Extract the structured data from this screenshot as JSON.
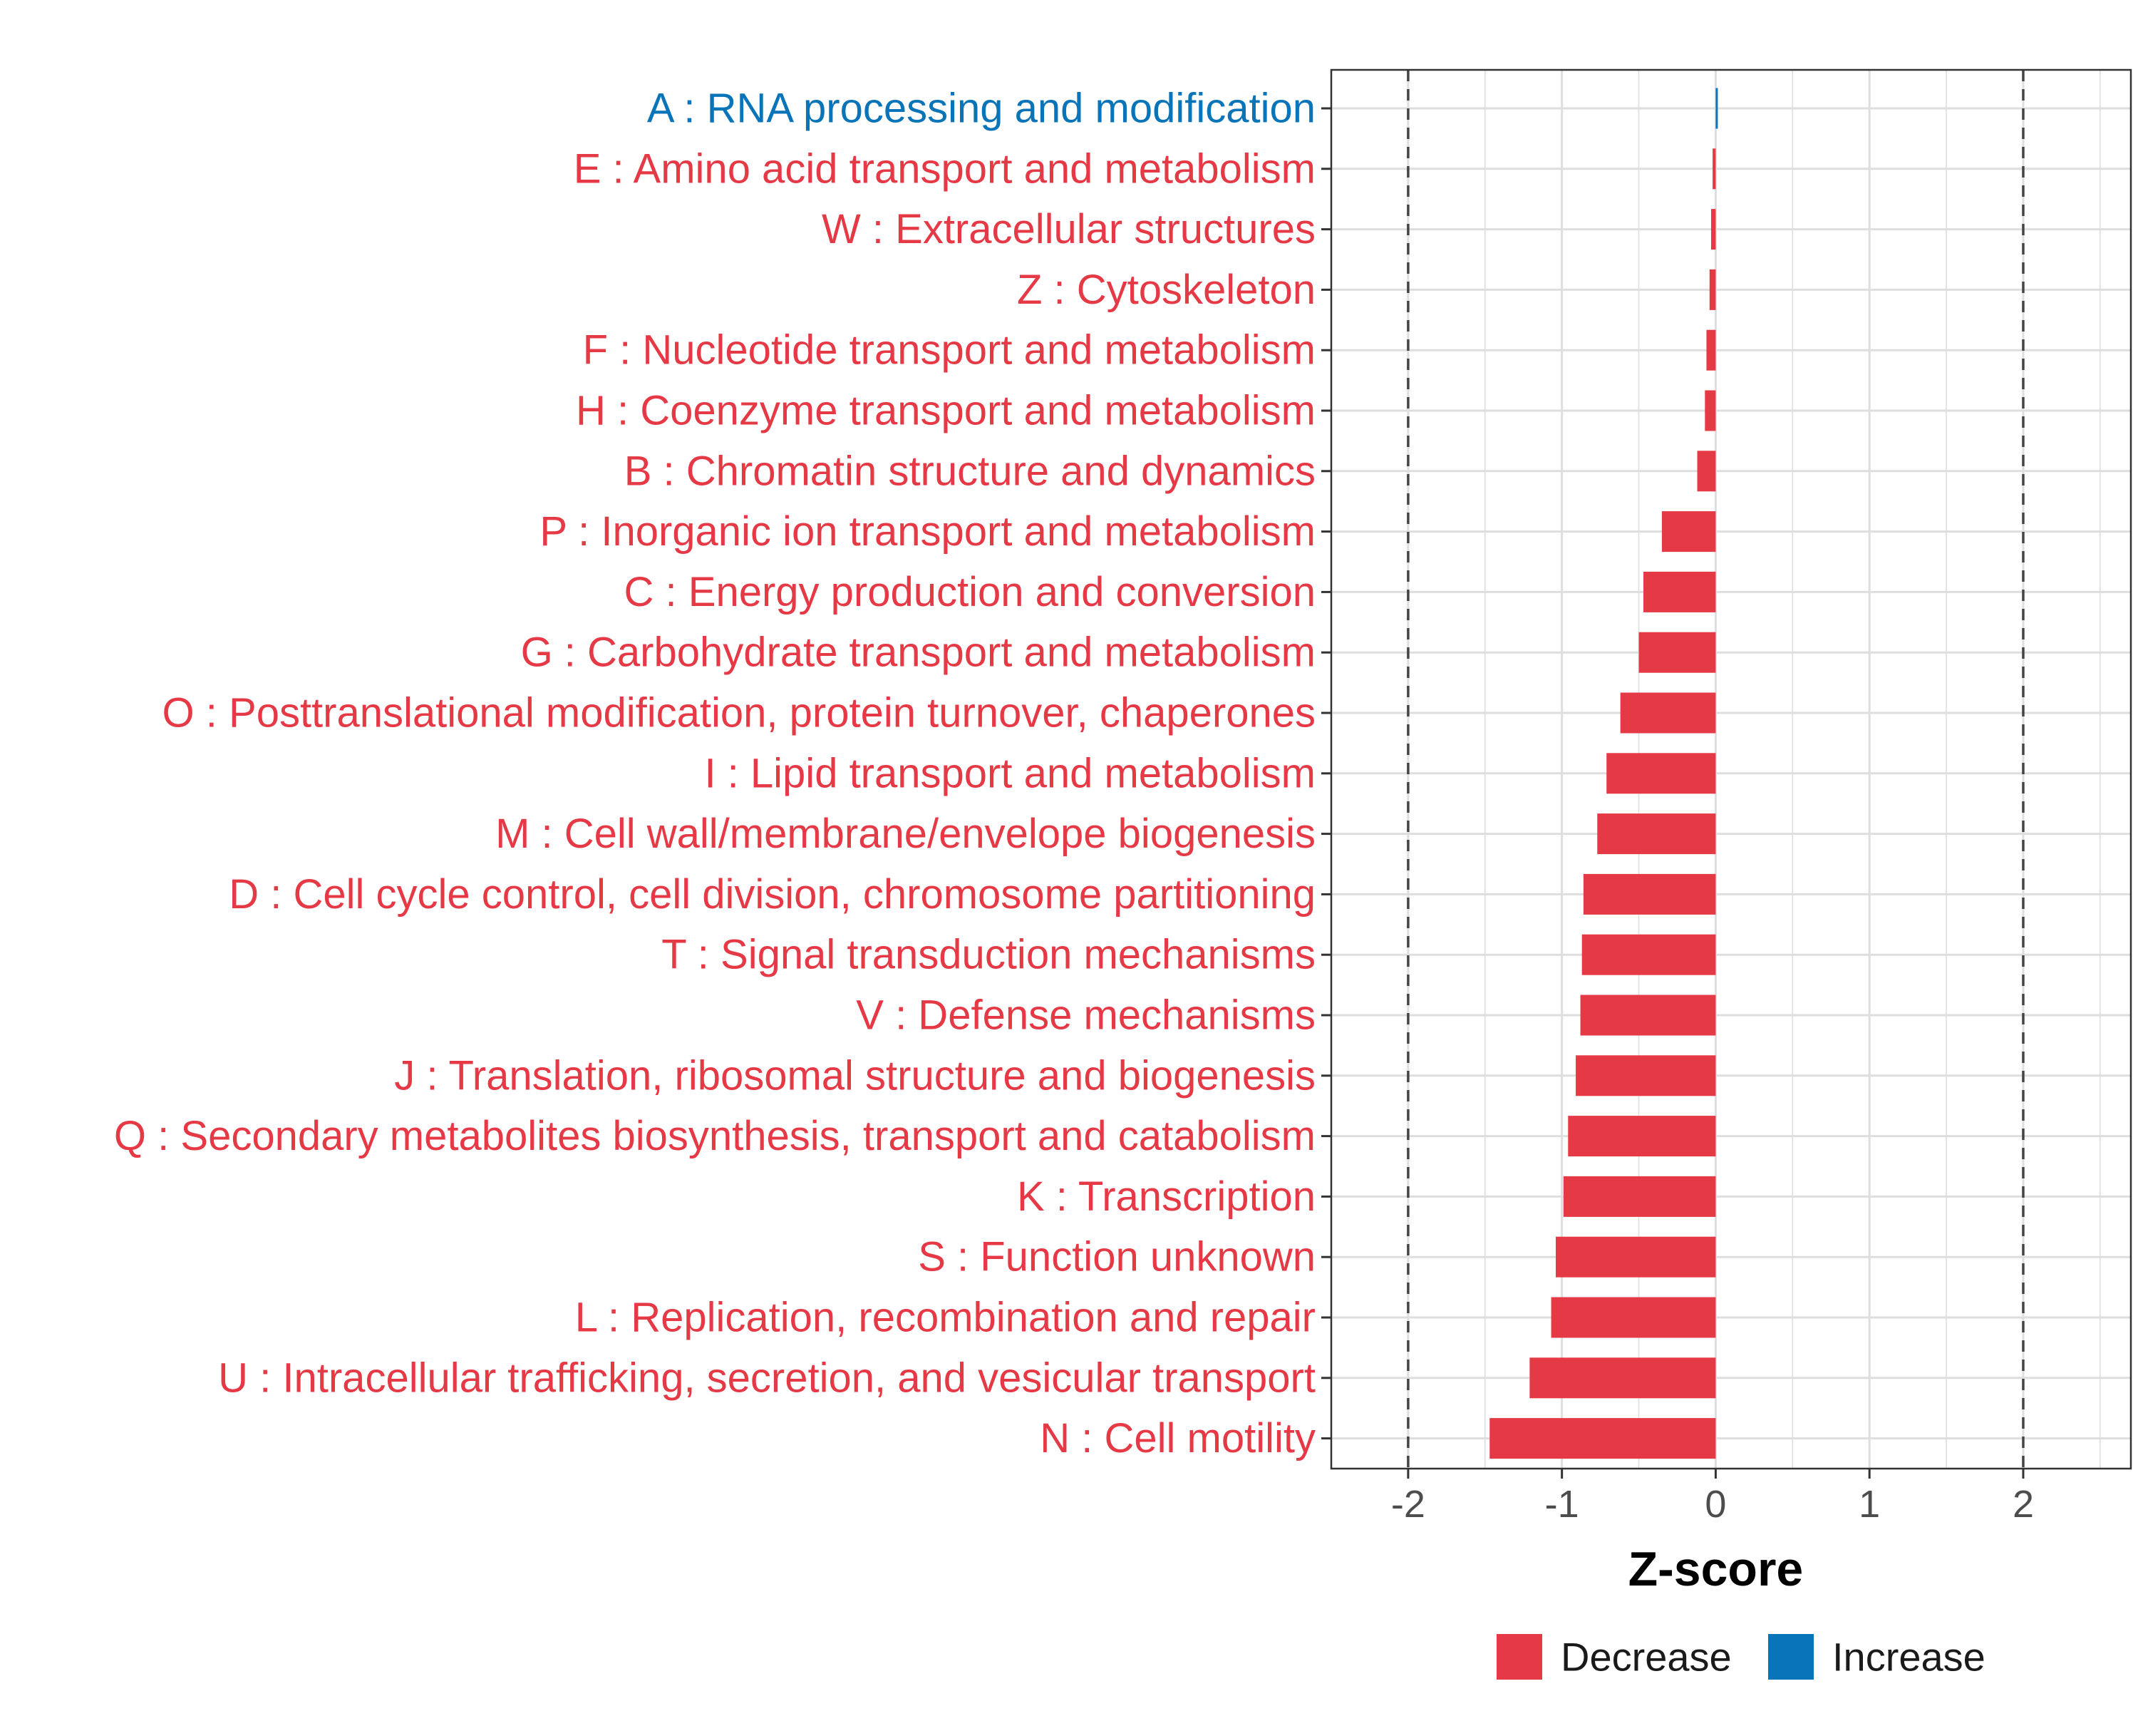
{
  "chart_data": {
    "type": "bar",
    "orientation": "horizontal",
    "xlabel": "Z-score",
    "xlim": [
      -2.5,
      2.7
    ],
    "xticks": [
      -2,
      -1,
      0,
      1,
      2
    ],
    "xtick_labels": [
      "-2",
      "-1",
      "0",
      "1",
      "2"
    ],
    "reference_lines": [
      -2,
      2
    ],
    "grid": true,
    "legend_position": "bottom",
    "colors": {
      "Decrease": "#e63946",
      "Increase": "#0a74b8"
    },
    "legend": [
      {
        "label": "Decrease",
        "color": "#e63946"
      },
      {
        "label": "Increase",
        "color": "#0a74b8"
      }
    ],
    "categories": [
      {
        "label": "A : RNA processing and modification",
        "value": 0.01,
        "direction": "Increase"
      },
      {
        "label": "E : Amino acid transport and metabolism",
        "value": -0.02,
        "direction": "Decrease"
      },
      {
        "label": "W : Extracellular structures",
        "value": -0.03,
        "direction": "Decrease"
      },
      {
        "label": "Z : Cytoskeleton",
        "value": -0.04,
        "direction": "Decrease"
      },
      {
        "label": "F : Nucleotide transport and metabolism",
        "value": -0.06,
        "direction": "Decrease"
      },
      {
        "label": "H : Coenzyme transport and metabolism",
        "value": -0.07,
        "direction": "Decrease"
      },
      {
        "label": "B : Chromatin structure and dynamics",
        "value": -0.12,
        "direction": "Decrease"
      },
      {
        "label": "P : Inorganic ion transport and metabolism",
        "value": -0.35,
        "direction": "Decrease"
      },
      {
        "label": "C : Energy production and conversion",
        "value": -0.47,
        "direction": "Decrease"
      },
      {
        "label": "G : Carbohydrate transport and metabolism",
        "value": -0.5,
        "direction": "Decrease"
      },
      {
        "label": "O : Posttranslational modification, protein turnover, chaperones",
        "value": -0.62,
        "direction": "Decrease"
      },
      {
        "label": "I : Lipid transport and metabolism",
        "value": -0.71,
        "direction": "Decrease"
      },
      {
        "label": "M : Cell wall/membrane/envelope biogenesis",
        "value": -0.77,
        "direction": "Decrease"
      },
      {
        "label": "D : Cell cycle control, cell division, chromosome partitioning",
        "value": -0.86,
        "direction": "Decrease"
      },
      {
        "label": "T : Signal transduction mechanisms",
        "value": -0.87,
        "direction": "Decrease"
      },
      {
        "label": "V : Defense mechanisms",
        "value": -0.88,
        "direction": "Decrease"
      },
      {
        "label": "J : Translation, ribosomal structure and biogenesis",
        "value": -0.91,
        "direction": "Decrease"
      },
      {
        "label": "Q : Secondary metabolites biosynthesis, transport and catabolism",
        "value": -0.96,
        "direction": "Decrease"
      },
      {
        "label": "K : Transcription",
        "value": -0.99,
        "direction": "Decrease"
      },
      {
        "label": "S : Function unknown",
        "value": -1.04,
        "direction": "Decrease"
      },
      {
        "label": "L : Replication, recombination and repair",
        "value": -1.07,
        "direction": "Decrease"
      },
      {
        "label": "U : Intracellular trafficking, secretion, and vesicular transport",
        "value": -1.21,
        "direction": "Decrease"
      },
      {
        "label": "N : Cell motility",
        "value": -1.47,
        "direction": "Decrease"
      }
    ]
  }
}
